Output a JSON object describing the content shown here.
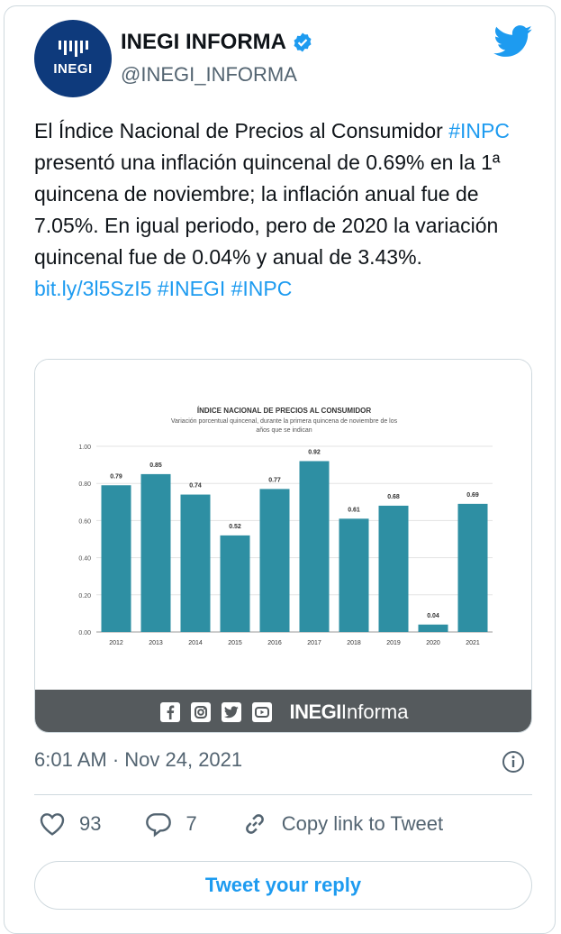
{
  "account": {
    "name": "INEGI INFORMA",
    "handle": "@INEGI_INFORMA",
    "avatar_text": "INEGI"
  },
  "tweet": {
    "text_before": "El Índice Nacional de Precios al Consumidor",
    "hashtag_inpc": "#INPC",
    "text_after": " presentó una inflación quincenal de 0.69% en la 1ª quincena de noviembre; la inflación anual fue de 7.05%. En igual periodo, pero de 2020 la variación quincenal fue de 0.04% y anual de 3.43%.",
    "link": "bit.ly/3l5SzI5",
    "hashtag_inegi": "#INEGI",
    "hashtag_inpc_end": "#INPC"
  },
  "media": {
    "footer_brand_bold": "INEGI",
    "footer_brand_light": "Informa"
  },
  "chart_data": {
    "type": "bar",
    "title": "ÍNDICE NACIONAL DE PRECIOS AL CONSUMIDOR",
    "subtitle": "Variación porcentual quincenal, durante la primera quincena de noviembre de los años que se indican",
    "categories": [
      "2012",
      "2013",
      "2014",
      "2015",
      "2016",
      "2017",
      "2018",
      "2019",
      "2020",
      "2021"
    ],
    "values": [
      0.79,
      0.85,
      0.74,
      0.52,
      0.77,
      0.92,
      0.61,
      0.68,
      0.04,
      0.69
    ],
    "value_labels": [
      "0.79",
      "0.85",
      "0.74",
      "0.52",
      "0.77",
      "0.92",
      "0.61",
      "0.68",
      "0.04",
      "0.69"
    ],
    "yticks": [
      "0.00",
      "0.20",
      "0.40",
      "0.60",
      "0.80",
      "1.00"
    ],
    "ylim": [
      0,
      1.0
    ],
    "bar_color": "#2e8fa3"
  },
  "timestamp": "6:01 AM · Nov 24, 2021",
  "actions": {
    "likes": "93",
    "replies": "7",
    "copy_link": "Copy link to Tweet"
  },
  "reply_button": "Tweet your reply",
  "colors": {
    "link": "#1d9bf0",
    "muted": "#536471",
    "avatar_bg": "#0e3a7c",
    "footer_bg": "#555a5d"
  }
}
